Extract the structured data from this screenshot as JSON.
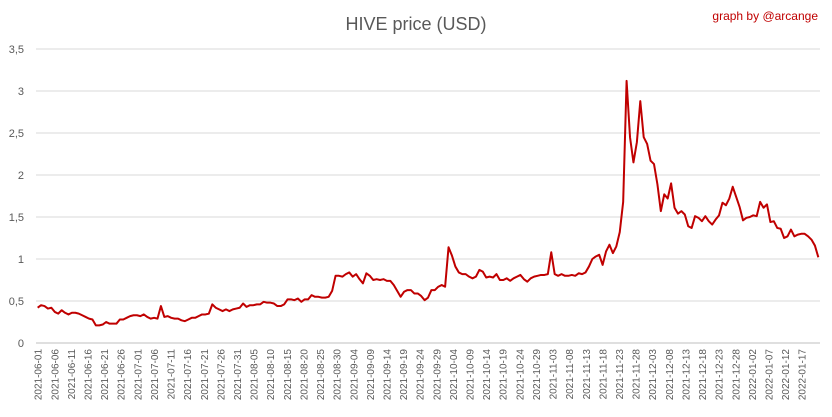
{
  "chart_data": {
    "type": "line",
    "title": "HIVE price (USD)",
    "credit": "graph by @arcange",
    "xlabel": "",
    "ylabel": "",
    "ylim": [
      0,
      3.5
    ],
    "yticks": [
      "0",
      "0,5",
      "1",
      "1,5",
      "2",
      "2,5",
      "3",
      "3,5"
    ],
    "grid": "horizontal",
    "legend": "none",
    "colors": {
      "line": "#c00000",
      "grid": "#d9d9d9",
      "axis_text": "#595959",
      "title": "#595959",
      "credit": "#c00000"
    },
    "x_start": "2021-06-01",
    "x_end": "2022-01-22",
    "xtick_labels": [
      "2021-06-01",
      "2021-06-06",
      "2021-06-11",
      "2021-06-16",
      "2021-06-21",
      "2021-06-26",
      "2021-07-01",
      "2021-07-06",
      "2021-07-11",
      "2021-07-16",
      "2021-07-21",
      "2021-07-26",
      "2021-07-31",
      "2021-08-05",
      "2021-08-10",
      "2021-08-15",
      "2021-08-20",
      "2021-08-25",
      "2021-08-30",
      "2021-09-04",
      "2021-09-09",
      "2021-09-14",
      "2021-09-19",
      "2021-09-24",
      "2021-09-29",
      "2021-10-04",
      "2021-10-09",
      "2021-10-14",
      "2021-10-19",
      "2021-10-24",
      "2021-10-29",
      "2021-11-03",
      "2021-11-08",
      "2021-11-13",
      "2021-11-18",
      "2021-11-23",
      "2021-11-28",
      "2021-12-03",
      "2021-12-08",
      "2021-12-13",
      "2021-12-18",
      "2021-12-23",
      "2021-12-28",
      "2022-01-02",
      "2022-01-07",
      "2022-01-12",
      "2022-01-17"
    ],
    "series": [
      {
        "values": [
          0.42,
          0.45,
          0.44,
          0.41,
          0.42,
          0.37,
          0.35,
          0.39,
          0.36,
          0.34,
          0.36,
          0.36,
          0.35,
          0.33,
          0.31,
          0.29,
          0.28,
          0.21,
          0.21,
          0.22,
          0.25,
          0.23,
          0.23,
          0.23,
          0.28,
          0.28,
          0.3,
          0.32,
          0.33,
          0.33,
          0.32,
          0.34,
          0.31,
          0.29,
          0.3,
          0.29,
          0.44,
          0.31,
          0.32,
          0.3,
          0.29,
          0.29,
          0.27,
          0.26,
          0.28,
          0.3,
          0.3,
          0.32,
          0.34,
          0.34,
          0.35,
          0.46,
          0.42,
          0.4,
          0.38,
          0.4,
          0.38,
          0.4,
          0.41,
          0.42,
          0.47,
          0.43,
          0.45,
          0.45,
          0.46,
          0.46,
          0.49,
          0.48,
          0.48,
          0.47,
          0.44,
          0.44,
          0.46,
          0.52,
          0.52,
          0.51,
          0.53,
          0.49,
          0.52,
          0.52,
          0.57,
          0.55,
          0.55,
          0.54,
          0.54,
          0.55,
          0.62,
          0.8,
          0.8,
          0.79,
          0.82,
          0.84,
          0.79,
          0.82,
          0.76,
          0.71,
          0.83,
          0.8,
          0.75,
          0.76,
          0.75,
          0.76,
          0.74,
          0.74,
          0.69,
          0.62,
          0.55,
          0.61,
          0.63,
          0.63,
          0.59,
          0.59,
          0.56,
          0.51,
          0.54,
          0.63,
          0.63,
          0.67,
          0.69,
          0.67,
          1.14,
          1.04,
          0.91,
          0.84,
          0.82,
          0.82,
          0.79,
          0.77,
          0.79,
          0.87,
          0.85,
          0.78,
          0.79,
          0.78,
          0.82,
          0.75,
          0.75,
          0.77,
          0.74,
          0.77,
          0.79,
          0.81,
          0.76,
          0.73,
          0.77,
          0.79,
          0.8,
          0.81,
          0.81,
          0.82,
          1.08,
          0.82,
          0.8,
          0.82,
          0.8,
          0.8,
          0.81,
          0.8,
          0.83,
          0.82,
          0.84,
          0.91,
          1.0,
          1.03,
          1.05,
          0.93,
          1.09,
          1.17,
          1.07,
          1.15,
          1.32,
          1.68,
          3.12,
          2.45,
          2.15,
          2.39,
          2.88,
          2.45,
          2.37,
          2.17,
          2.13,
          1.89,
          1.57,
          1.77,
          1.72,
          1.9,
          1.61,
          1.54,
          1.57,
          1.53,
          1.39,
          1.37,
          1.51,
          1.49,
          1.45,
          1.51,
          1.45,
          1.41,
          1.47,
          1.52,
          1.67,
          1.64,
          1.72,
          1.86,
          1.74,
          1.62,
          1.46,
          1.49,
          1.5,
          1.52,
          1.51,
          1.68,
          1.61,
          1.65,
          1.44,
          1.45,
          1.37,
          1.36,
          1.25,
          1.27,
          1.35,
          1.27,
          1.29,
          1.3,
          1.3,
          1.27,
          1.23,
          1.16,
          1.02
        ]
      }
    ]
  }
}
